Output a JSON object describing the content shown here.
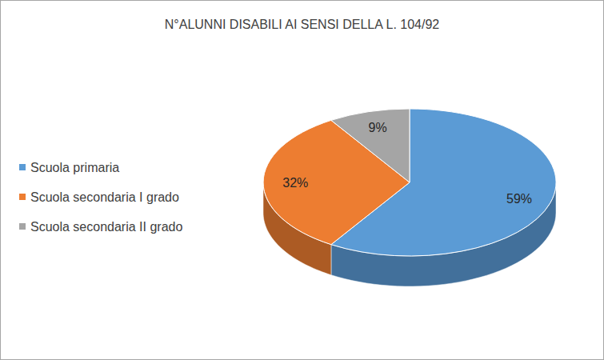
{
  "chart_data": {
    "type": "pie",
    "title": "N°ALUNNI DISABILI AI SENSI DELLA L. 104/92",
    "categories": [
      "Scuola primaria",
      "Scuola secondaria I grado",
      "Scuola secondaria II grado"
    ],
    "values": [
      59,
      32,
      9
    ],
    "value_labels": [
      "59%",
      "32%",
      "9%"
    ],
    "colors": [
      "#5b9bd5",
      "#ed7d31",
      "#a5a5a5"
    ],
    "data_labels": true,
    "legend": "left"
  }
}
